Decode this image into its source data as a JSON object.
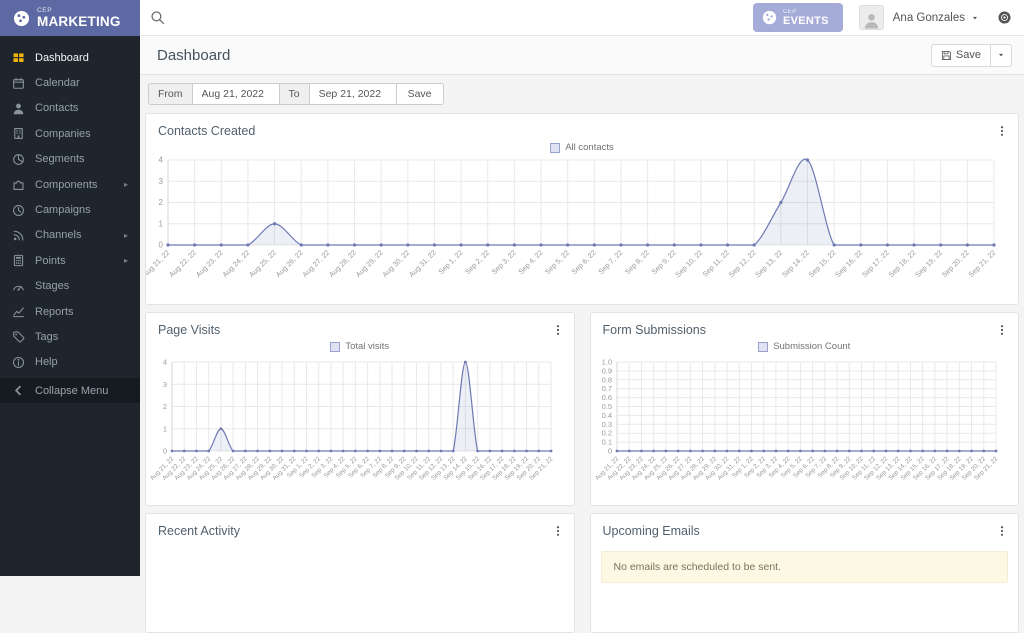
{
  "brand": {
    "logo_small": "CEP",
    "logo_text": "MARKETING"
  },
  "topbar": {
    "events_small": "CEP",
    "events_text": "EVENTS",
    "user_name": "Ana Gonzales"
  },
  "sidebar": {
    "items": [
      {
        "label": "Dashboard",
        "icon": "dashboard-icon",
        "active": true,
        "submenu": false
      },
      {
        "label": "Calendar",
        "icon": "calendar-icon",
        "active": false,
        "submenu": false
      },
      {
        "label": "Contacts",
        "icon": "contact-icon",
        "active": false,
        "submenu": false
      },
      {
        "label": "Companies",
        "icon": "company-icon",
        "active": false,
        "submenu": false
      },
      {
        "label": "Segments",
        "icon": "segments-icon",
        "active": false,
        "submenu": false
      },
      {
        "label": "Components",
        "icon": "components-icon",
        "active": false,
        "submenu": true
      },
      {
        "label": "Campaigns",
        "icon": "campaigns-icon",
        "active": false,
        "submenu": false
      },
      {
        "label": "Channels",
        "icon": "channels-icon",
        "active": false,
        "submenu": true
      },
      {
        "label": "Points",
        "icon": "points-icon",
        "active": false,
        "submenu": true
      },
      {
        "label": "Stages",
        "icon": "stages-icon",
        "active": false,
        "submenu": false
      },
      {
        "label": "Reports",
        "icon": "reports-icon",
        "active": false,
        "submenu": false
      },
      {
        "label": "Tags",
        "icon": "tags-icon",
        "active": false,
        "submenu": false
      },
      {
        "label": "Help",
        "icon": "help-icon",
        "active": false,
        "submenu": false
      }
    ],
    "collapse": {
      "label": "Collapse Menu",
      "icon": "collapse-left-icon"
    }
  },
  "page": {
    "title": "Dashboard",
    "save_label": "Save"
  },
  "filter": {
    "from_label": "From",
    "from_value": "Aug 21, 2022",
    "to_label": "To",
    "to_value": "Sep 21, 2022",
    "save_label": "Save"
  },
  "panels": {
    "contacts": {
      "title": "Contacts Created"
    },
    "visits": {
      "title": "Page Visits"
    },
    "forms": {
      "title": "Form Submissions"
    },
    "activity": {
      "title": "Recent Activity"
    },
    "emails": {
      "title": "Upcoming Emails",
      "empty_message": "No emails are scheduled to be sent."
    }
  },
  "chart_data": [
    {
      "type": "line",
      "title": "Contacts Created",
      "legend_position": "top-center",
      "grid": true,
      "x": [
        "Aug 21, 22",
        "Aug 22, 22",
        "Aug 23, 22",
        "Aug 24, 22",
        "Aug 25, 22",
        "Aug 26, 22",
        "Aug 27, 22",
        "Aug 28, 22",
        "Aug 29, 22",
        "Aug 30, 22",
        "Aug 31, 22",
        "Sep 1, 22",
        "Sep 2, 22",
        "Sep 3, 22",
        "Sep 4, 22",
        "Sep 5, 22",
        "Sep 6, 22",
        "Sep 7, 22",
        "Sep 8, 22",
        "Sep 9, 22",
        "Sep 10, 22",
        "Sep 11, 22",
        "Sep 12, 22",
        "Sep 13, 22",
        "Sep 14, 22",
        "Sep 15, 22",
        "Sep 16, 22",
        "Sep 17, 22",
        "Sep 18, 22",
        "Sep 19, 22",
        "Sep 20, 22",
        "Sep 21, 22"
      ],
      "series": [
        {
          "name": "All contacts",
          "values": [
            0,
            0,
            0,
            0,
            1,
            0,
            0,
            0,
            0,
            0,
            0,
            0,
            0,
            0,
            0,
            0,
            0,
            0,
            0,
            0,
            0,
            0,
            0,
            2,
            4,
            0,
            0,
            0,
            0,
            0,
            0,
            0
          ]
        }
      ],
      "ylim": [
        0,
        4
      ],
      "yticks": [
        0,
        1,
        2,
        3,
        4
      ],
      "ytick_labels": [
        "0",
        "1",
        "2",
        "3",
        "4"
      ]
    },
    {
      "type": "line",
      "title": "Page Visits",
      "legend_position": "top-center",
      "grid": true,
      "x": [
        "Aug 21, 22",
        "Aug 22, 22",
        "Aug 23, 22",
        "Aug 24, 22",
        "Aug 25, 22",
        "Aug 26, 22",
        "Aug 27, 22",
        "Aug 28, 22",
        "Aug 29, 22",
        "Aug 30, 22",
        "Aug 31, 22",
        "Sep 1, 22",
        "Sep 2, 22",
        "Sep 3, 22",
        "Sep 4, 22",
        "Sep 5, 22",
        "Sep 6, 22",
        "Sep 7, 22",
        "Sep 8, 22",
        "Sep 9, 22",
        "Sep 10, 22",
        "Sep 11, 22",
        "Sep 12, 22",
        "Sep 13, 22",
        "Sep 14, 22",
        "Sep 15, 22",
        "Sep 16, 22",
        "Sep 17, 22",
        "Sep 18, 22",
        "Sep 19, 22",
        "Sep 20, 22",
        "Sep 21, 22"
      ],
      "series": [
        {
          "name": "Total visits",
          "values": [
            0,
            0,
            0,
            0,
            1,
            0,
            0,
            0,
            0,
            0,
            0,
            0,
            0,
            0,
            0,
            0,
            0,
            0,
            0,
            0,
            0,
            0,
            0,
            0,
            4,
            0,
            0,
            0,
            0,
            0,
            0,
            0
          ]
        }
      ],
      "ylim": [
        0,
        4
      ],
      "yticks": [
        0,
        1,
        2,
        3,
        4
      ],
      "ytick_labels": [
        "0",
        "1",
        "2",
        "3",
        "4"
      ]
    },
    {
      "type": "line",
      "title": "Form Submissions",
      "legend_position": "top-center",
      "grid": true,
      "x": [
        "Aug 21, 22",
        "Aug 22, 22",
        "Aug 23, 22",
        "Aug 24, 22",
        "Aug 25, 22",
        "Aug 26, 22",
        "Aug 27, 22",
        "Aug 28, 22",
        "Aug 29, 22",
        "Aug 30, 22",
        "Aug 31, 22",
        "Sep 1, 22",
        "Sep 2, 22",
        "Sep 3, 22",
        "Sep 4, 22",
        "Sep 5, 22",
        "Sep 6, 22",
        "Sep 7, 22",
        "Sep 8, 22",
        "Sep 9, 22",
        "Sep 10, 22",
        "Sep 11, 22",
        "Sep 12, 22",
        "Sep 13, 22",
        "Sep 14, 22",
        "Sep 15, 22",
        "Sep 16, 22",
        "Sep 17, 22",
        "Sep 18, 22",
        "Sep 19, 22",
        "Sep 20, 22",
        "Sep 21, 22"
      ],
      "series": [
        {
          "name": "Submission Count",
          "values": [
            0,
            0,
            0,
            0,
            0,
            0,
            0,
            0,
            0,
            0,
            0,
            0,
            0,
            0,
            0,
            0,
            0,
            0,
            0,
            0,
            0,
            0,
            0,
            0,
            0,
            0,
            0,
            0,
            0,
            0,
            0,
            0
          ]
        }
      ],
      "ylim": [
        0,
        1
      ],
      "yticks": [
        0,
        0.1,
        0.2,
        0.3,
        0.4,
        0.5,
        0.6,
        0.7,
        0.8,
        0.9,
        1.0
      ],
      "ytick_labels": [
        "0",
        "0.1",
        "0.2",
        "0.3",
        "0.4",
        "0.5",
        "0.6",
        "0.7",
        "0.8",
        "0.9",
        "1.0"
      ]
    }
  ],
  "colors": {
    "brand_purple": "#5d69a2",
    "events_button": "#a6acd8",
    "sidebar_bg": "#1e252d",
    "active_icon_yellow": "#f0b60d",
    "chart_line": "#6e79b4",
    "chart_grid": "#e9e9e9",
    "chart_axis": "#d5d5d5",
    "alert_bg": "#fcf8e3"
  }
}
